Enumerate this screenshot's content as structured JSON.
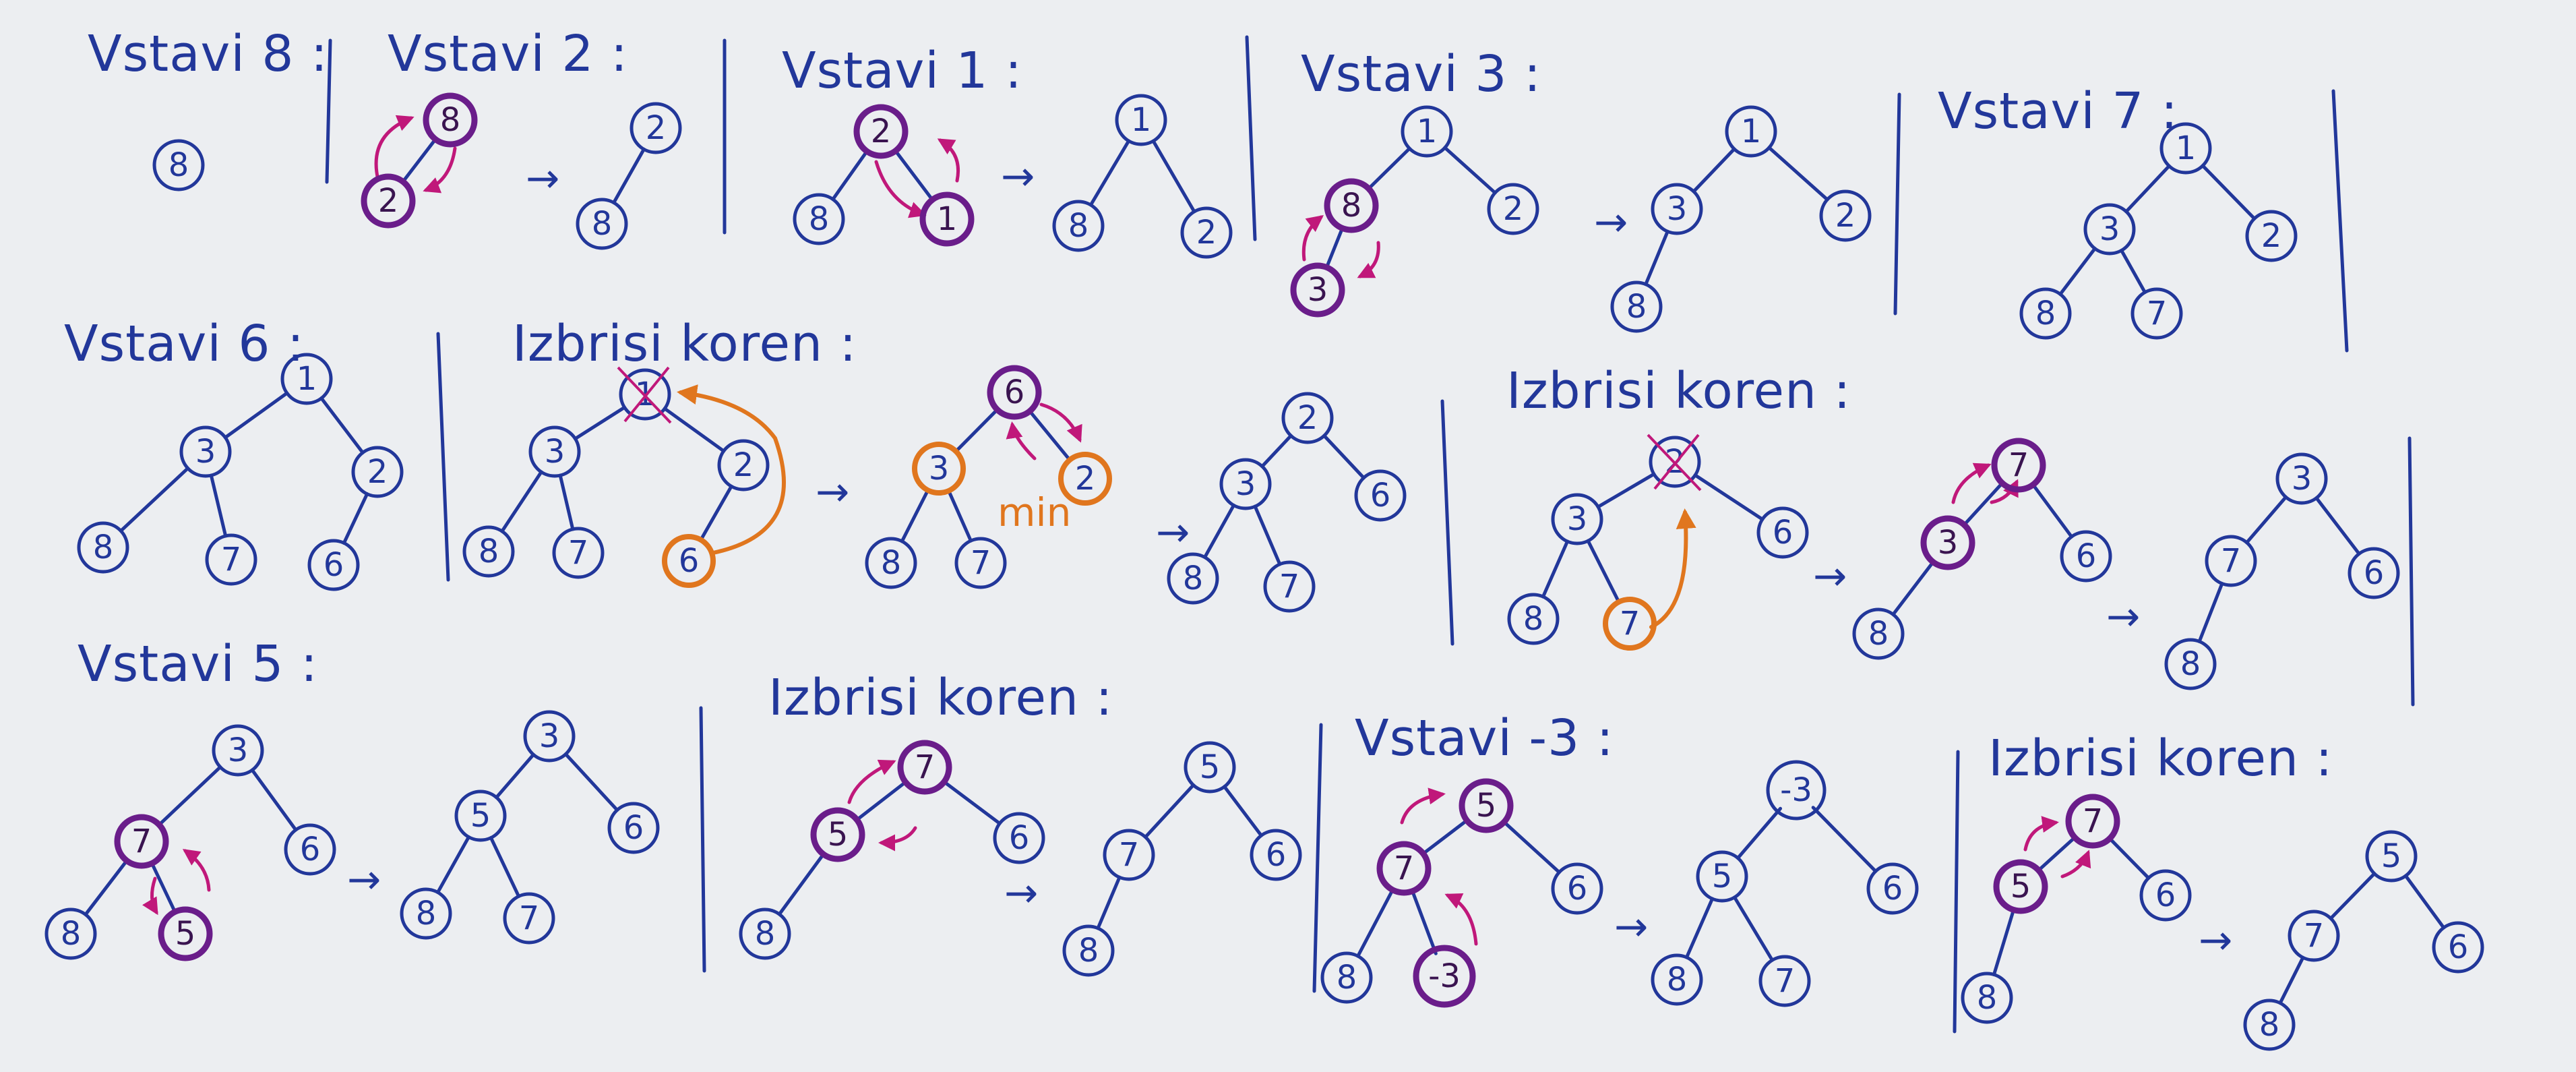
{
  "colors": {
    "ink": "#22379a",
    "swap": "#c0187a",
    "highlight": "#6a1d8a",
    "move": "#e0761e",
    "paper": "#eceef1"
  },
  "icons": {
    "transition": "arrow-right-icon",
    "swap": "swap-arrows-icon",
    "move": "curved-arrow-icon"
  },
  "arrow_glyph": "→",
  "min_label": "min",
  "steps": [
    {
      "title": "Vstavi 8 :",
      "trees": [
        {
          "nodes": [
            "8"
          ]
        }
      ]
    },
    {
      "title": "Vstavi 2 :",
      "trees": [
        {
          "nodes": [
            "8",
            "2"
          ]
        },
        {
          "nodes": [
            "2",
            "8"
          ]
        }
      ]
    },
    {
      "title": "Vstavi 1 :",
      "trees": [
        {
          "nodes": [
            "2",
            "8",
            "1"
          ]
        },
        {
          "nodes": [
            "1",
            "8",
            "2"
          ]
        }
      ]
    },
    {
      "title": "Vstavi 3 :",
      "trees": [
        {
          "nodes": [
            "1",
            "8",
            "2",
            "3"
          ]
        },
        {
          "nodes": [
            "1",
            "3",
            "2",
            "8"
          ]
        }
      ]
    },
    {
      "title": "Vstavi 7 :",
      "trees": [
        {
          "nodes": [
            "1",
            "3",
            "2",
            "8",
            "7"
          ]
        }
      ]
    },
    {
      "title": "Vstavi 6 :",
      "trees": [
        {
          "nodes": [
            "1",
            "3",
            "2",
            "8",
            "7",
            "6"
          ]
        }
      ]
    },
    {
      "title": "Izbrisi koren :",
      "trees": [
        {
          "nodes": [
            "1",
            "3",
            "2",
            "8",
            "7",
            "6"
          ]
        },
        {
          "nodes": [
            "6",
            "3",
            "2",
            "8",
            "7"
          ]
        },
        {
          "nodes": [
            "2",
            "3",
            "6",
            "8",
            "7"
          ]
        }
      ]
    },
    {
      "title": "Izbrisi koren :",
      "trees": [
        {
          "nodes": [
            "2",
            "3",
            "6",
            "8",
            "7"
          ]
        },
        {
          "nodes": [
            "7",
            "3",
            "6",
            "8"
          ]
        },
        {
          "nodes": [
            "3",
            "7",
            "6",
            "8"
          ]
        }
      ]
    },
    {
      "title": "Vstavi 5 :",
      "trees": [
        {
          "nodes": [
            "3",
            "7",
            "6",
            "8",
            "5"
          ]
        },
        {
          "nodes": [
            "3",
            "5",
            "6",
            "8",
            "7"
          ]
        }
      ]
    },
    {
      "title": "Izbrisi koren :",
      "trees": [
        {
          "nodes": [
            "7",
            "5",
            "6",
            "8"
          ]
        },
        {
          "nodes": [
            "5",
            "7",
            "6",
            "8"
          ]
        }
      ]
    },
    {
      "title": "Vstavi -3 :",
      "trees": [
        {
          "nodes": [
            "5",
            "7",
            "6",
            "8",
            "-3"
          ]
        },
        {
          "nodes": [
            "-3",
            "5",
            "6",
            "8",
            "7"
          ]
        }
      ]
    },
    {
      "title": "Izbrisi koren :",
      "trees": [
        {
          "nodes": [
            "7",
            "5",
            "6",
            "8"
          ]
        },
        {
          "nodes": [
            "5",
            "7",
            "6",
            "8"
          ]
        }
      ]
    }
  ]
}
